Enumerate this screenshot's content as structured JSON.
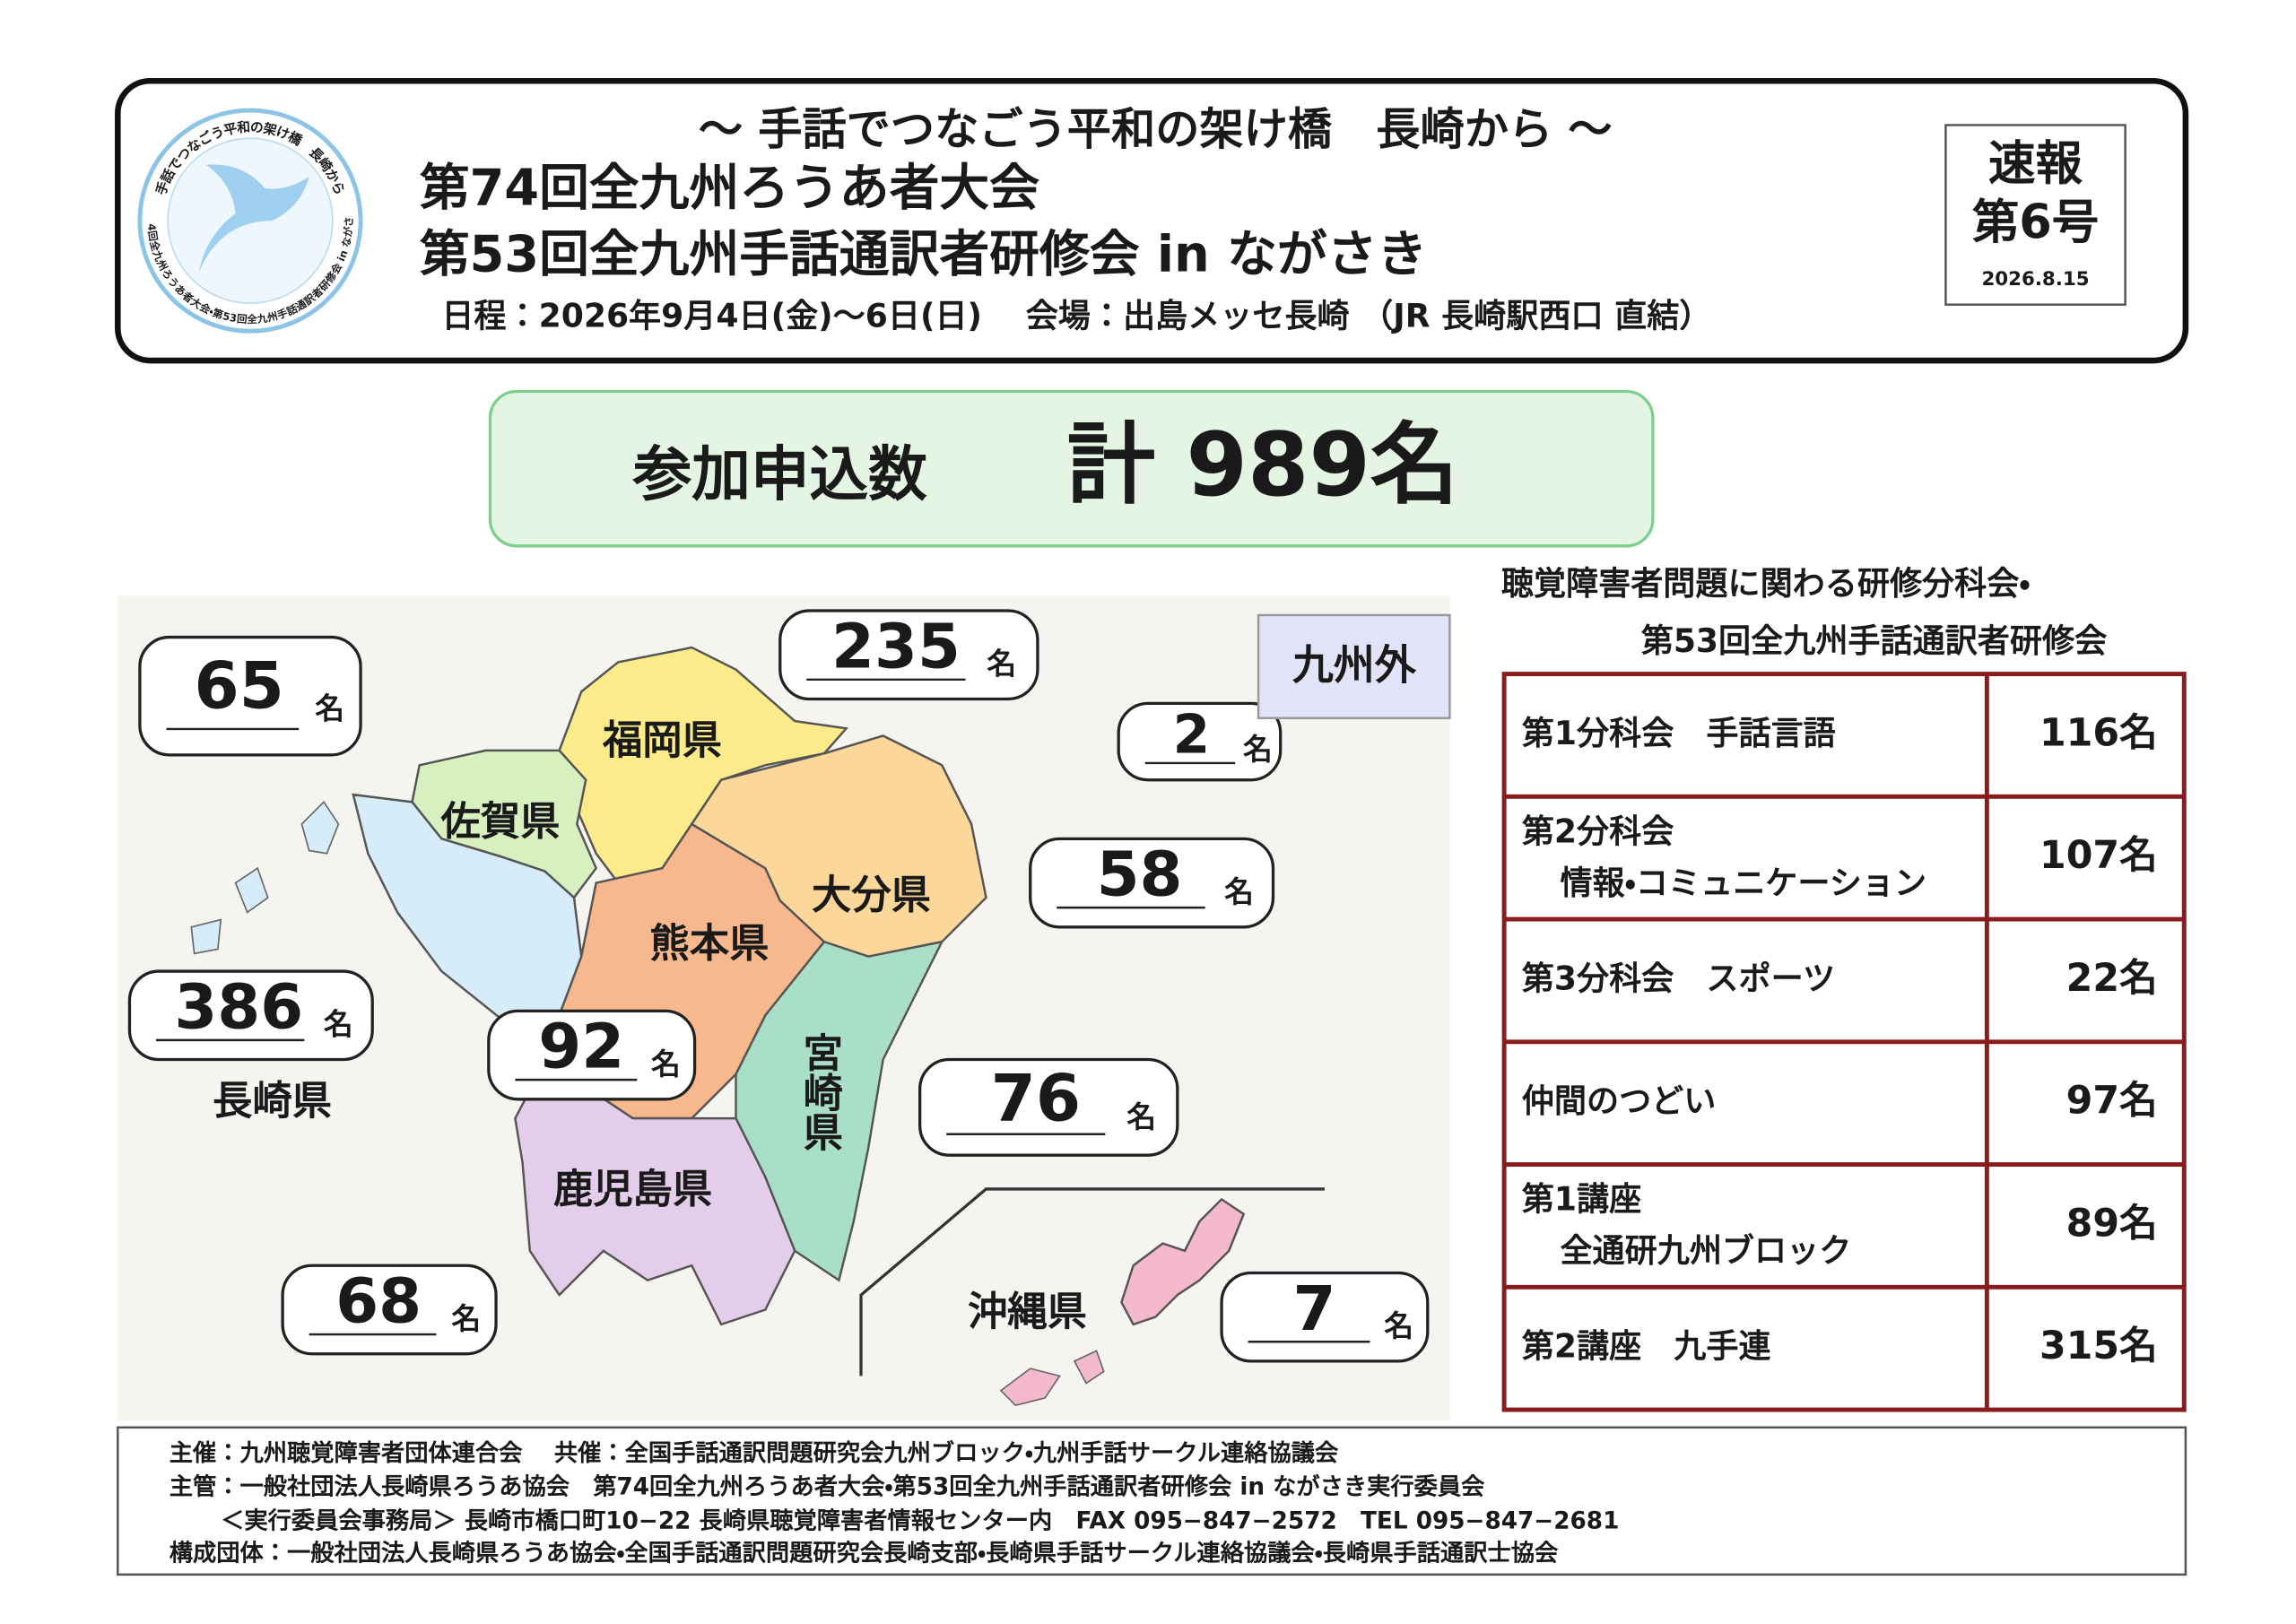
{
  "logo": {
    "top": "手話でつなごう平和の架け橋　長崎から",
    "bottom": "第74回全九州ろうあ者大会・第53回全九州手話通訳者研修会 in ながさき"
  },
  "header": {
    "slogan": "～ 手話でつなごう平和の架け橋　長崎から ～",
    "title_lines": [
      "第74回全九州ろうあ者大会",
      "第53回全九州手話通訳者研修会 in ながさき"
    ],
    "schedule": "日程：2026年9月4日(金)～6日(日)　 会場：出島メッセ長崎 （JR 長崎駅西口 直結）"
  },
  "badge": {
    "label": "速報",
    "issue": "第6号",
    "date": "2026.8.15"
  },
  "total": {
    "label": "参加申込数",
    "value": "計 989名"
  },
  "map": {
    "unit": "名",
    "outside": {
      "label": "九州外",
      "count": 2
    },
    "prefectures": [
      {
        "name": "福岡県",
        "count": 235
      },
      {
        "name": "佐賀県",
        "count": 65
      },
      {
        "name": "長崎県",
        "count": 386
      },
      {
        "name": "熊本県",
        "count": 92
      },
      {
        "name": "大分県",
        "count": 58
      },
      {
        "name": "宮崎県",
        "count": 76
      },
      {
        "name": "鹿児島県",
        "count": 68
      },
      {
        "name": "沖縄県",
        "count": 7
      }
    ]
  },
  "sessions": {
    "title_lines": [
      "聴覚障害者問題に関わる研修分科会・",
      "第53回全九州手話通訳者研修会"
    ],
    "rows": [
      {
        "name": "第1分科会　手話言語",
        "count": "116名"
      },
      {
        "name": "第2分科会",
        "sub": "情報・コミュニケーション",
        "count": "107名"
      },
      {
        "name": "第3分科会　スポーツ",
        "count": "22名"
      },
      {
        "name": "仲間のつどい",
        "count": "97名"
      },
      {
        "name": "第1講座",
        "sub": "全通研九州ブロック",
        "count": "89名"
      },
      {
        "name": "第2講座　九手連",
        "count": "315名"
      }
    ]
  },
  "footer": [
    "主催：九州聴覚障害者団体連合会　 共催：全国手話通訳問題研究会九州ブロック・九州手話サークル連絡協議会",
    "主管：一般社団法人長崎県ろうあ協会　第74回全九州ろうあ者大会・第53回全九州手話通訳者研修会 in ながさき実行委員会",
    "＜実行委員会事務局＞ 長崎市橋口町10−22 長崎県聴覚障害者情報センター内　FAX 095−847−2572　TEL 095−847−2681",
    "構成団体：一般社団法人長崎県ろうあ協会・全国手話通訳問題研究会長崎支部・長崎県手話サークル連絡協議会・長崎県手話通訳士協会"
  ]
}
